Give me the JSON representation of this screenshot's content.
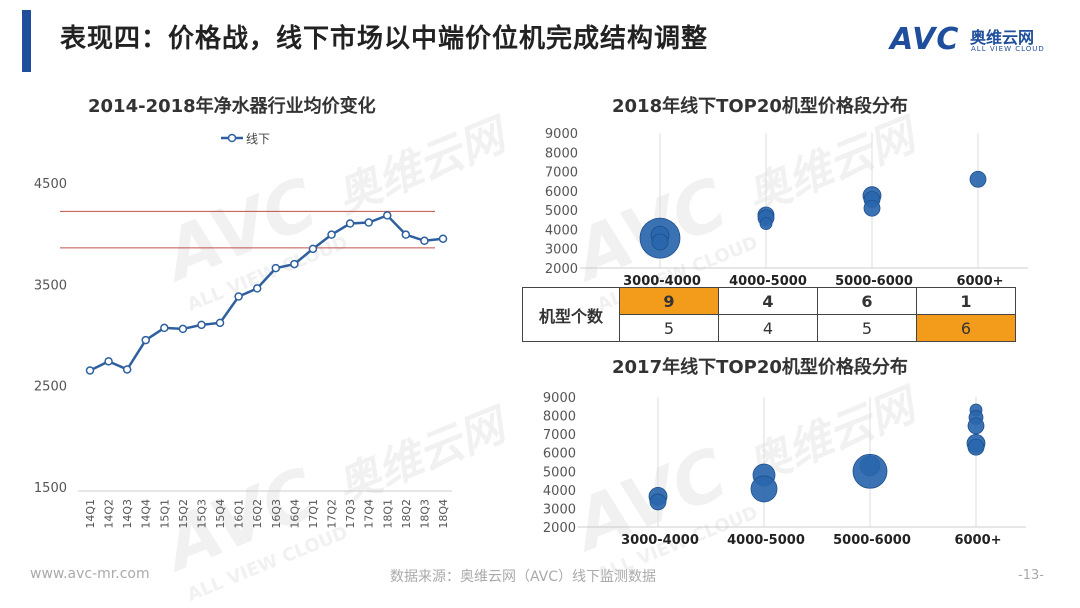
{
  "header": {
    "title": "表现四：价格战，线下市场以中端价位机完成结构调整"
  },
  "logo": {
    "brand": "AVC",
    "cn": "奥维云网",
    "en": "ALL VIEW CLOUD"
  },
  "watermark": {
    "brand": "AVC",
    "cn": "奥维云网",
    "en": "ALL VIEW CLOUD"
  },
  "footer": {
    "url": "www.avc-mr.com",
    "source": "数据来源：奥维云网（AVC）线下监测数据",
    "page": "-13-"
  },
  "colors": {
    "accent": "#1f4e9c",
    "line": "#2e5f9e",
    "bubble": "#2a66ad",
    "highlight": "#f39c1c",
    "ref_line": "#c0504d"
  },
  "chart_data": [
    {
      "type": "line",
      "title": "2014-2018年净水器行业均价变化",
      "x": [
        "14Q1",
        "14Q2",
        "14Q3",
        "14Q4",
        "15Q1",
        "15Q2",
        "15Q3",
        "15Q4",
        "16Q1",
        "16Q2",
        "16Q3",
        "16Q4",
        "17Q1",
        "17Q2",
        "17Q3",
        "17Q4",
        "18Q1",
        "18Q2",
        "18Q3",
        "18Q4"
      ],
      "series": [
        {
          "name": "线下",
          "values": [
            2650,
            2740,
            2660,
            2950,
            3070,
            3060,
            3100,
            3120,
            3380,
            3460,
            3660,
            3700,
            3850,
            3990,
            4100,
            4110,
            4180,
            3990,
            3930,
            3950
          ]
        }
      ],
      "yticks": [
        1500,
        2500,
        3500,
        4500
      ],
      "ylim": [
        1500,
        4500
      ],
      "reference_lines": [
        4220,
        3860
      ],
      "legend": "top-center",
      "grid": false
    },
    {
      "type": "scatter",
      "title": "2018年线下TOP20机型价格段分布",
      "categories": [
        "3000-4000",
        "4000-5000",
        "5000-6000",
        "6000+"
      ],
      "points": [
        {
          "category": "3000-4000",
          "y": 3550,
          "size": 20
        },
        {
          "category": "3000-4000",
          "y": 3700,
          "size": 9
        },
        {
          "category": "3000-4000",
          "y": 3350,
          "size": 8
        },
        {
          "category": "4000-5000",
          "y": 4750,
          "size": 8
        },
        {
          "category": "4000-5000",
          "y": 4600,
          "size": 8
        },
        {
          "category": "4000-5000",
          "y": 4300,
          "size": 6
        },
        {
          "category": "5000-6000",
          "y": 5750,
          "size": 9
        },
        {
          "category": "5000-6000",
          "y": 5550,
          "size": 8
        },
        {
          "category": "5000-6000",
          "y": 5100,
          "size": 8
        },
        {
          "category": "6000+",
          "y": 6600,
          "size": 8
        }
      ],
      "yticks": [
        2000,
        3000,
        4000,
        5000,
        6000,
        7000,
        8000,
        9000
      ],
      "ylim": [
        2000,
        9000
      ],
      "grid": true
    },
    {
      "type": "table",
      "row_label": "机型个数",
      "rows": [
        {
          "year": "2018",
          "values": [
            9,
            4,
            6,
            1
          ],
          "highlight_index": 0
        },
        {
          "year": "2017",
          "values": [
            5,
            4,
            5,
            6
          ],
          "highlight_index": 3
        }
      ]
    },
    {
      "type": "scatter",
      "title": "2017年线下TOP20机型价格段分布",
      "categories": [
        "3000-4000",
        "4000-5000",
        "5000-6000",
        "6000+"
      ],
      "points": [
        {
          "category": "3000-4000",
          "y": 3650,
          "size": 9
        },
        {
          "category": "3000-4000",
          "y": 3350,
          "size": 8
        },
        {
          "category": "4000-5000",
          "y": 4800,
          "size": 11
        },
        {
          "category": "4000-5000",
          "y": 4050,
          "size": 13
        },
        {
          "category": "5000-6000",
          "y": 5300,
          "size": 10
        },
        {
          "category": "5000-6000",
          "y": 5000,
          "size": 17
        },
        {
          "category": "6000+",
          "y": 8300,
          "size": 6
        },
        {
          "category": "6000+",
          "y": 7900,
          "size": 7
        },
        {
          "category": "6000+",
          "y": 7450,
          "size": 8
        },
        {
          "category": "6000+",
          "y": 6500,
          "size": 9
        },
        {
          "category": "6000+",
          "y": 6300,
          "size": 8
        }
      ],
      "yticks": [
        2000,
        3000,
        4000,
        5000,
        6000,
        7000,
        8000,
        9000
      ],
      "ylim": [
        2000,
        9000
      ],
      "grid": true
    }
  ]
}
